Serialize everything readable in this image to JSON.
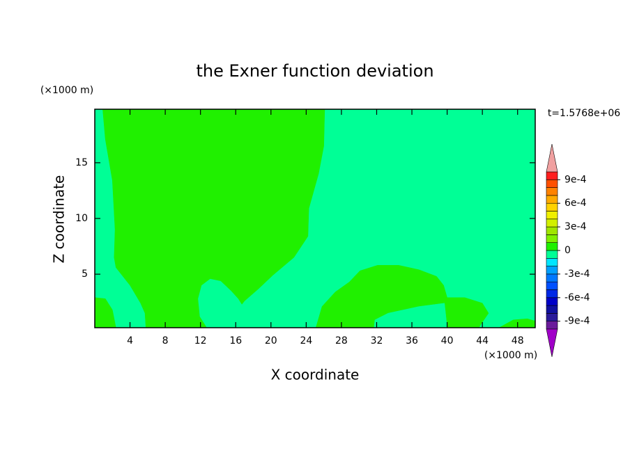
{
  "chart_data": {
    "type": "filled_contour",
    "title": "the Exner function deviation",
    "x_label": "X coordinate",
    "y_label": "Z coordinate",
    "x_unit_label": "(×1000 m)",
    "y_unit_label": "(×1000 m)",
    "time_label": "t=1.5768e+06",
    "xlim": [
      0,
      50
    ],
    "ylim": [
      0.2,
      19.8
    ],
    "xticks": [
      4,
      8,
      12,
      16,
      20,
      24,
      28,
      32,
      36,
      40,
      44,
      48
    ],
    "yticks": [
      5,
      10,
      15
    ],
    "levels": [
      -0.001,
      -0.0009,
      -0.0008,
      -0.0007,
      -0.0006,
      -0.0005,
      -0.0004,
      -0.0003,
      -0.0002,
      -0.0001,
      0,
      0.0001,
      0.0002,
      0.0003,
      0.0004,
      0.0005,
      0.0006,
      0.0007,
      0.0008,
      0.0009,
      0.001
    ],
    "colors": [
      "#6a1b9a",
      "#2a1a9a",
      "#1010a0",
      "#0000c8",
      "#0028e6",
      "#0050ff",
      "#0078ff",
      "#00a0ff",
      "#00e6ff",
      "#00ff96",
      "#20f000",
      "#80f000",
      "#a0e600",
      "#d2f000",
      "#f0f000",
      "#ffd200",
      "#ffaa00",
      "#ff8200",
      "#ff5000",
      "#ff1e1e"
    ],
    "over_color": "#f0a0a0",
    "under_color": "#a000c8",
    "colorbar_ticks": [
      {
        "value": 0.0009,
        "label": "9e-4"
      },
      {
        "value": 0.0006,
        "label": "6e-4"
      },
      {
        "value": 0.0003,
        "label": "3e-4"
      },
      0,
      {
        "value": -0.0003,
        "label": "-3e-4"
      },
      {
        "value": -0.0006,
        "label": "-6e-4"
      },
      {
        "value": -0.0009,
        "label": "-9e-4"
      }
    ],
    "background_value": -5e-05,
    "regions": [
      {
        "value": 5e-05,
        "x": [
          0.9,
          26.1,
          26.0,
          25.4,
          24.3,
          24.2,
          22.6,
          20.2,
          18.6,
          17.0,
          16.7,
          16.3,
          15.5,
          14.3,
          13.1,
          12.1,
          11.7,
          11.9,
          12.7,
          5.8,
          5.7,
          5.2,
          4.0,
          2.4,
          2.2,
          2.3,
          2.0,
          1.2
        ],
        "y": [
          19.8,
          19.8,
          16.5,
          14.0,
          10.9,
          8.4,
          6.5,
          4.9,
          3.7,
          2.6,
          2.3,
          2.8,
          3.5,
          4.4,
          4.6,
          4.0,
          2.8,
          1.2,
          0.2,
          0.2,
          1.5,
          2.4,
          4.0,
          5.6,
          6.5,
          9.0,
          13.4,
          17.1
        ]
      },
      {
        "value": 5e-05,
        "x": [
          0,
          1.2,
          2.0,
          2.4,
          0
        ],
        "y": [
          2.9,
          2.8,
          1.8,
          0.2,
          0.2
        ]
      },
      {
        "value": 5e-05,
        "x": [
          25.1,
          25.8,
          27.3,
          28.9,
          30.1,
          32.1,
          34.5,
          36.8,
          38.8,
          39.6,
          40.0,
          42.0,
          44.0,
          44.7,
          44.0,
          43.6
        ],
        "y": [
          0.2,
          2.1,
          3.4,
          4.3,
          5.3,
          5.8,
          5.8,
          5.4,
          4.8,
          4.0,
          2.9,
          2.9,
          2.4,
          1.5,
          0.7,
          0.2
        ]
      },
      {
        "value": -5e-05,
        "x": [
          31.7,
          31.8,
          33.3,
          36.8,
          39.7,
          40.0
        ],
        "y": [
          0.2,
          0.9,
          1.5,
          2.1,
          2.4,
          0.2
        ]
      },
      {
        "value": 5e-05,
        "x": [
          45.9,
          47.5,
          49.1,
          50,
          50
        ],
        "y": [
          0.2,
          0.9,
          1.0,
          0.8,
          0.2
        ]
      }
    ]
  }
}
